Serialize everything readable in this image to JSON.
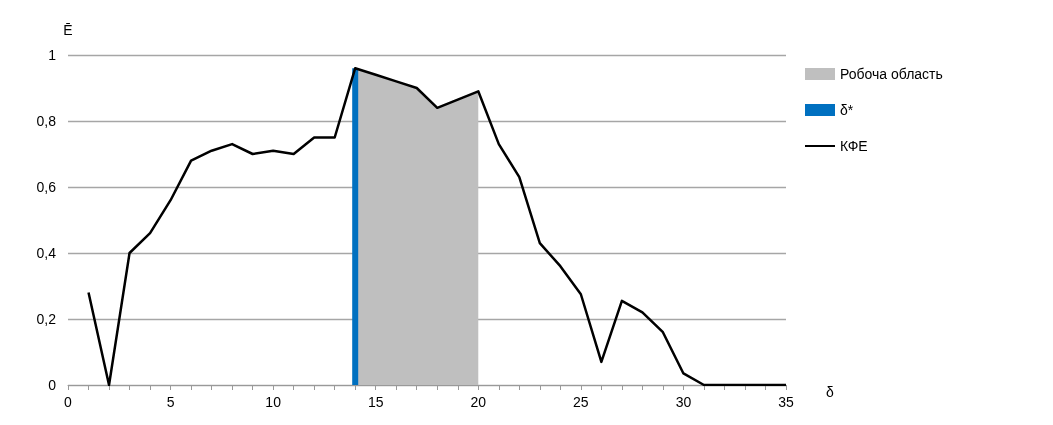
{
  "chart_data": {
    "type": "line",
    "xlabel": "δ",
    "ylabel": "Ē",
    "xlim": [
      0,
      35
    ],
    "xticks": [
      0,
      {
        "value": 1,
        "label": null
      },
      {
        "value": 2,
        "label": null
      },
      {
        "value": 3,
        "label": null
      },
      {
        "value": 4,
        "label": null
      },
      5,
      {
        "value": 6,
        "label": null
      },
      {
        "value": 7,
        "label": null
      },
      {
        "value": 8,
        "label": null
      },
      {
        "value": 9,
        "label": null
      },
      10,
      {
        "value": 11,
        "label": null
      },
      {
        "value": 12,
        "label": null
      },
      {
        "value": 13,
        "label": null
      },
      {
        "value": 14,
        "label": null
      },
      15,
      {
        "value": 16,
        "label": null
      },
      {
        "value": 17,
        "label": null
      },
      {
        "value": 18,
        "label": null
      },
      {
        "value": 19,
        "label": null
      },
      20,
      {
        "value": 21,
        "label": null
      },
      {
        "value": 22,
        "label": null
      },
      {
        "value": 23,
        "label": null
      },
      {
        "value": 24,
        "label": null
      },
      25,
      {
        "value": 26,
        "label": null
      },
      {
        "value": 27,
        "label": null
      },
      {
        "value": 28,
        "label": null
      },
      {
        "value": 29,
        "label": null
      },
      30,
      {
        "value": 31,
        "label": null
      },
      {
        "value": 32,
        "label": null
      },
      {
        "value": 33,
        "label": null
      },
      {
        "value": 34,
        "label": null
      },
      35
    ],
    "ylim": [
      0,
      1
    ],
    "yticks": [
      0,
      {
        "value": 0.2,
        "label": "0,2"
      },
      {
        "value": 0.4,
        "label": "0,4"
      },
      {
        "value": 0.6,
        "label": "0,6"
      },
      {
        "value": 0.8,
        "label": "0,8"
      },
      1
    ],
    "grid": "y",
    "legend": "right",
    "marker": "none",
    "line_style": "solid",
    "series": [
      {
        "name": "Робоча область",
        "type": "area",
        "color": "#bfbfbf",
        "x": [
          14,
          15,
          16,
          17,
          18,
          19,
          20
        ],
        "values": [
          0.96,
          0.94,
          0.92,
          0.9,
          0.84,
          0.865,
          0.89
        ]
      },
      {
        "name": "δ*",
        "type": "bar",
        "color": "#0070c0",
        "x": [
          14
        ],
        "values": [
          0.96
        ]
      },
      {
        "name": "КФЕ",
        "color": "#000000",
        "x": [
          1,
          2,
          3,
          4,
          5,
          6,
          7,
          8,
          9,
          10,
          11,
          12,
          13,
          14,
          15,
          16,
          17,
          18,
          19,
          20,
          21,
          22,
          23,
          24,
          25,
          26,
          27,
          28,
          29,
          30,
          31,
          32,
          33,
          34,
          35
        ],
        "values": [
          0.28,
          0,
          0.4,
          0.46,
          0.56,
          0.68,
          0.71,
          0.73,
          0.7,
          0.71,
          0.7,
          0.75,
          0.75,
          0.96,
          0.94,
          0.92,
          0.9,
          0.84,
          0.865,
          0.89,
          0.73,
          0.63,
          0.43,
          0.36,
          0.275,
          0.07,
          0.255,
          0.22,
          0.16,
          0.035,
          0,
          0,
          0,
          0,
          0
        ]
      }
    ]
  }
}
